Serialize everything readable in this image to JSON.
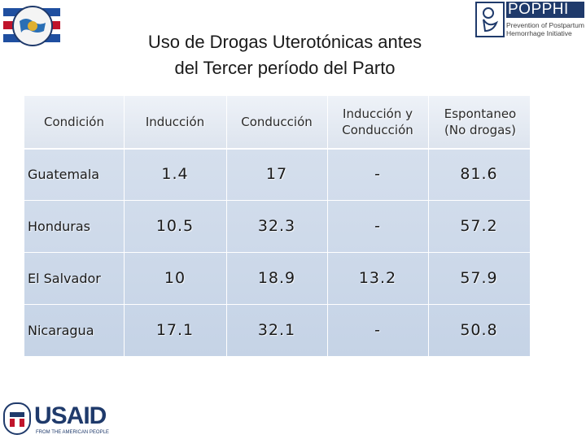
{
  "title": {
    "line1": "Uso de Drogas Uterotónicas antes",
    "line2": "del Tercer período del Parto"
  },
  "logos": {
    "right_brand": "POPPHI",
    "right_tagline": "Prevention of Postpartum Hemorrhage Initiative",
    "usaid_word": "USAID",
    "usaid_from": "FROM THE AMERICAN PEOPLE"
  },
  "table": {
    "headers": [
      "Condición",
      "Inducción",
      "Conducción",
      "Inducción y Conducción",
      "Espontaneo (No drogas)"
    ],
    "rows": [
      [
        "Guatemala",
        "1.4",
        "17",
        "-",
        "81.6"
      ],
      [
        "Honduras",
        "10.5",
        "32.3",
        "-",
        "57.2"
      ],
      [
        "El Salvador",
        "10",
        "18.9",
        "13.2",
        "57.9"
      ],
      [
        "Nicaragua",
        "17.1",
        "32.1",
        "-",
        "50.8"
      ]
    ]
  },
  "colors": {
    "header_band": "#e4e9f1",
    "body_band": "#ccd8ea",
    "brand_blue": "#1f3a6b"
  }
}
